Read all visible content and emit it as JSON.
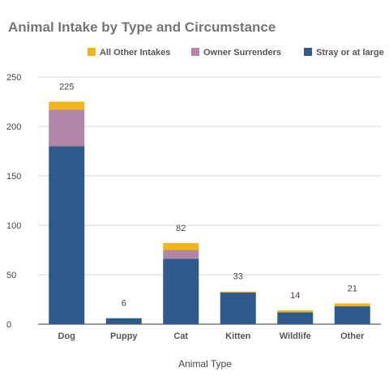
{
  "chart_data": {
    "type": "bar",
    "stacked": true,
    "title": "Animal Intake by Type and Circumstance",
    "xlabel": "Animal Type",
    "ylabel": "",
    "categories": [
      "Dog",
      "Puppy",
      "Cat",
      "Kitten",
      "Wildlife",
      "Other"
    ],
    "series": [
      {
        "name": "Stray or at large",
        "color": "#2e5a8c",
        "values": [
          180,
          6,
          66,
          32,
          12,
          18
        ]
      },
      {
        "name": "Owner Surrenders",
        "color": "#b185a6",
        "values": [
          37,
          0,
          9,
          0,
          0,
          0
        ]
      },
      {
        "name": "All Other Intakes",
        "color": "#f0b41c",
        "values": [
          8,
          0,
          7,
          1,
          2,
          3
        ]
      }
    ],
    "totals": [
      225,
      6,
      82,
      33,
      14,
      21
    ],
    "ylim": [
      0,
      250
    ],
    "yticks": [
      0,
      50,
      100,
      150,
      200,
      250
    ],
    "grid": true,
    "legend": {
      "position": "top-right",
      "entries": [
        "All Other Intakes",
        "Owner Surrenders",
        "Stray or at large"
      ]
    }
  }
}
